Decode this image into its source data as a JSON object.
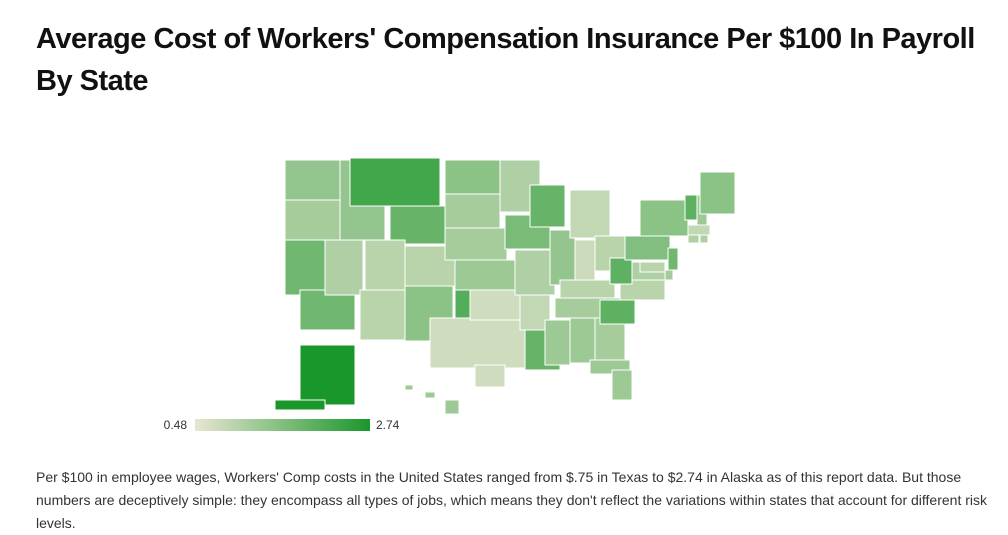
{
  "chart_data": {
    "type": "choropleth",
    "title": "Average Cost of Workers' Compensation Insurance Per $100 In Payroll By State",
    "values": [
      1.4,
      1.2,
      1.8,
      1.1,
      1.4,
      2.3,
      1.9,
      1.0,
      1.0,
      1.0,
      1.5,
      1.5,
      1.2,
      1.2,
      1.3,
      2.1,
      0.75,
      1.1,
      1.7,
      1.1,
      0.9,
      1.9,
      1.9,
      1.4,
      0.9,
      0.8,
      1.0,
      1.0,
      1.2,
      1.3,
      1.3,
      1.2,
      1.3,
      2.0,
      1.0,
      1.1,
      2.0,
      1.6,
      1.5,
      2.0,
      1.3,
      1.5,
      0.9,
      1.1,
      1.1,
      1.8,
      1.2,
      1.0,
      2.74,
      1.3
    ],
    "colorbar": {
      "range": [
        0.48,
        2.74
      ],
      "colors": [
        "#e8e5d2",
        "#1a972a"
      ]
    },
    "note": "Per $100 in employee wages, Workers' Comp costs in the United States ranged from $.75 in Texas to $2.74 in Alaska as of this report data. But those numbers are deceptively simple: they encompass all types of jobs, which means they don't reflect the variations within states that account for different risk levels."
  }
}
